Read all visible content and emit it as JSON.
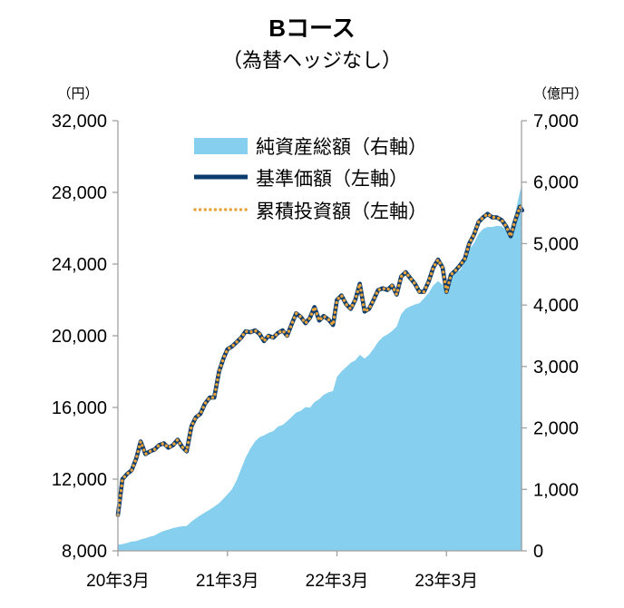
{
  "chart_data": {
    "type": "line",
    "title": "Bコース",
    "subtitle": "（為替ヘッジなし）",
    "grid": false,
    "legend": "top-left",
    "y_left": {
      "label": "（円）",
      "min": 8000,
      "max": 32000,
      "ticks": [
        8000,
        12000,
        16000,
        20000,
        24000,
        28000,
        32000
      ],
      "tick_labels": [
        "8,000",
        "12,000",
        "16,000",
        "20,000",
        "24,000",
        "28,000",
        "32,000"
      ]
    },
    "y_right": {
      "label": "（億円）",
      "min": 0,
      "max": 7000,
      "ticks": [
        0,
        1000,
        2000,
        3000,
        4000,
        5000,
        6000,
        7000
      ],
      "tick_labels": [
        "0",
        "1,000",
        "2,000",
        "3,000",
        "4,000",
        "5,000",
        "6,000",
        "7,000"
      ]
    },
    "x_axis": {
      "min": "2020-03-01",
      "max": "2023-11-06",
      "ticks": [
        "2020-03-01",
        "2021-03-01",
        "2022-03-01",
        "2023-03-01"
      ],
      "tick_labels": [
        "20年3月",
        "21年3月",
        "22年3月",
        "23年3月"
      ]
    },
    "x": [
      "2020-03-01",
      "2020-03-16",
      "2020-04-01",
      "2020-04-16",
      "2020-05-01",
      "2020-05-16",
      "2020-06-01",
      "2020-06-16",
      "2020-07-01",
      "2020-07-16",
      "2020-08-01",
      "2020-08-16",
      "2020-09-01",
      "2020-09-16",
      "2020-10-01",
      "2020-10-16",
      "2020-11-01",
      "2020-11-16",
      "2020-12-01",
      "2020-12-16",
      "2021-01-01",
      "2021-01-16",
      "2021-02-01",
      "2021-02-16",
      "2021-03-01",
      "2021-03-16",
      "2021-04-01",
      "2021-04-16",
      "2021-05-01",
      "2021-05-16",
      "2021-06-01",
      "2021-06-16",
      "2021-07-01",
      "2021-07-16",
      "2021-08-01",
      "2021-08-16",
      "2021-09-01",
      "2021-09-16",
      "2021-10-01",
      "2021-10-16",
      "2021-11-01",
      "2021-11-16",
      "2021-12-01",
      "2021-12-16",
      "2022-01-01",
      "2022-01-16",
      "2022-02-01",
      "2022-02-16",
      "2022-03-01",
      "2022-03-16",
      "2022-04-01",
      "2022-04-16",
      "2022-05-01",
      "2022-05-16",
      "2022-06-01",
      "2022-06-16",
      "2022-07-01",
      "2022-07-16",
      "2022-08-01",
      "2022-08-16",
      "2022-09-01",
      "2022-09-16",
      "2022-10-01",
      "2022-10-16",
      "2022-11-01",
      "2022-11-16",
      "2022-12-01",
      "2022-12-16",
      "2023-01-01",
      "2023-01-16",
      "2023-02-01",
      "2023-02-16",
      "2023-03-01",
      "2023-03-16",
      "2023-04-01",
      "2023-04-16",
      "2023-05-01",
      "2023-05-16",
      "2023-06-01",
      "2023-06-16",
      "2023-07-01",
      "2023-07-16",
      "2023-08-01",
      "2023-08-16",
      "2023-09-01",
      "2023-09-16",
      "2023-10-01",
      "2023-10-16",
      "2023-11-01",
      "2023-11-08"
    ],
    "series": [
      {
        "name": "純資産総額（右軸）",
        "style": "area",
        "axis": "right",
        "color": "#86CFEE",
        "values": [
          100,
          110,
          130,
          150,
          160,
          185,
          205,
          230,
          250,
          290,
          325,
          345,
          370,
          385,
          400,
          405,
          475,
          530,
          580,
          625,
          670,
          720,
          775,
          850,
          920,
          1000,
          1150,
          1340,
          1520,
          1660,
          1780,
          1850,
          1880,
          1920,
          1950,
          2020,
          2050,
          2110,
          2180,
          2250,
          2280,
          2340,
          2330,
          2420,
          2470,
          2540,
          2580,
          2600,
          2830,
          2920,
          2990,
          3060,
          3100,
          3190,
          3130,
          3190,
          3290,
          3400,
          3480,
          3520,
          3580,
          3650,
          3850,
          3940,
          3980,
          4010,
          4030,
          4110,
          4200,
          4320,
          4390,
          4330,
          4250,
          4450,
          4530,
          4570,
          4700,
          4900,
          5010,
          5160,
          5240,
          5270,
          5270,
          5290,
          5280,
          5220,
          5170,
          5500,
          5850,
          5950
        ]
      },
      {
        "name": "基準価額（左軸）",
        "style": "line",
        "axis": "left",
        "color": "#0D3C6E",
        "values": [
          10000,
          12000,
          12300,
          12500,
          13150,
          14100,
          13400,
          13550,
          13650,
          13900,
          14000,
          13750,
          13900,
          14200,
          13800,
          13550,
          14950,
          15450,
          15650,
          16200,
          16550,
          16550,
          18000,
          18750,
          19250,
          19400,
          19650,
          19900,
          20250,
          20200,
          20300,
          20100,
          19700,
          20000,
          19900,
          20150,
          20300,
          20000,
          20650,
          21250,
          21050,
          20700,
          21000,
          21600,
          20850,
          21100,
          20900,
          20600,
          22000,
          22250,
          21750,
          21500,
          22000,
          22900,
          21350,
          21500,
          22000,
          22550,
          22650,
          22550,
          22800,
          22300,
          23300,
          23550,
          23200,
          22900,
          22450,
          22450,
          23050,
          23800,
          24250,
          23800,
          22450,
          23400,
          23650,
          23950,
          24300,
          25150,
          25650,
          26350,
          26600,
          26800,
          26600,
          26600,
          26450,
          26100,
          25550,
          26450,
          27200,
          27000
        ]
      },
      {
        "name": "累積投資額（左軸）",
        "style": "dotted",
        "axis": "left",
        "color": "#E8A33A",
        "values": [
          10000,
          12000,
          12300,
          12500,
          13150,
          14100,
          13400,
          13550,
          13650,
          13900,
          14000,
          13750,
          13900,
          14200,
          13800,
          13550,
          14950,
          15450,
          15650,
          16200,
          16550,
          16550,
          18000,
          18750,
          19250,
          19400,
          19650,
          19900,
          20250,
          20200,
          20300,
          20100,
          19700,
          20000,
          19900,
          20150,
          20300,
          20000,
          20650,
          21250,
          21050,
          20700,
          21000,
          21600,
          20850,
          21100,
          20900,
          20600,
          22000,
          22250,
          21750,
          21500,
          22000,
          22900,
          21350,
          21500,
          22000,
          22550,
          22650,
          22550,
          22800,
          22300,
          23300,
          23550,
          23200,
          22900,
          22450,
          22450,
          23050,
          23800,
          24250,
          23800,
          22450,
          23400,
          23650,
          23950,
          24300,
          25150,
          25650,
          26350,
          26600,
          26800,
          26600,
          26600,
          26450,
          26100,
          25550,
          26450,
          27200,
          27000
        ]
      }
    ]
  }
}
